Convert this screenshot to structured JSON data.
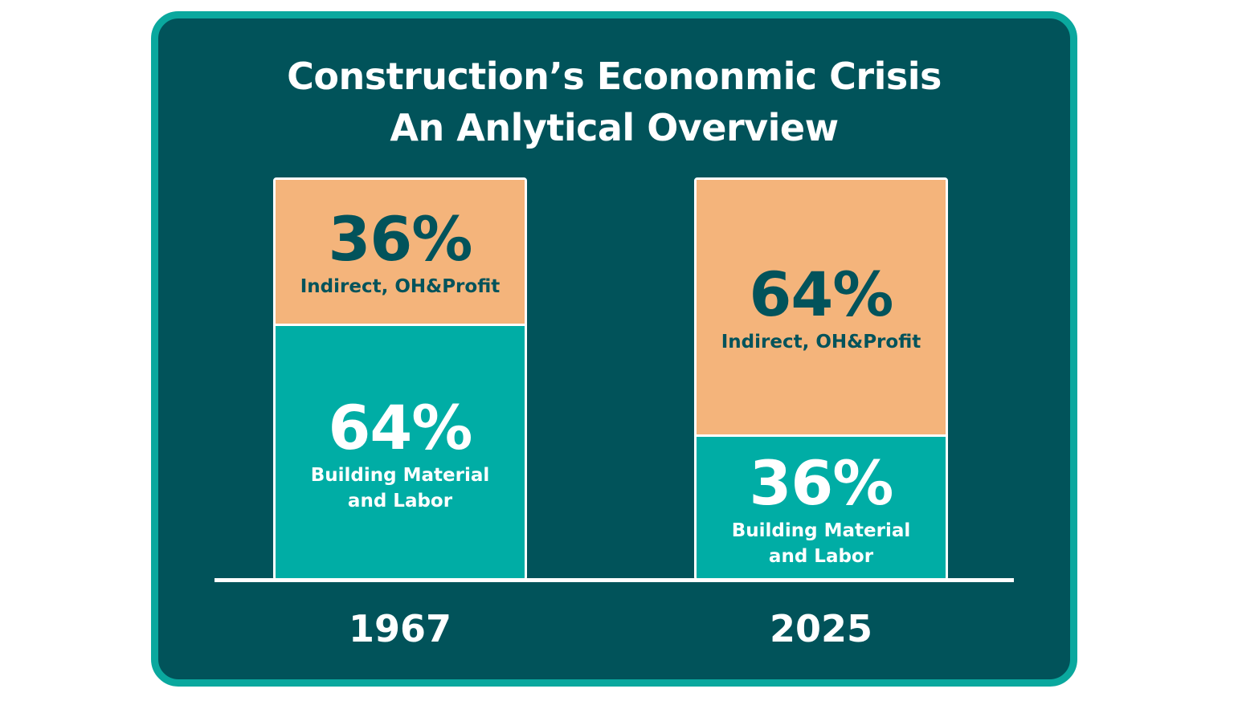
{
  "title_line1": "Construction’s Econonmic Crisis",
  "title_line2": "An Anlytical Overview",
  "colors": {
    "background": "#01535a",
    "frame": "#0aa89e",
    "indirect": "#f4b47b",
    "building": "#00ada5",
    "text_dark": "#02535b",
    "text_light": "#ffffff"
  },
  "chart_data": {
    "type": "bar",
    "stacked": true,
    "categories": [
      "1967",
      "2025"
    ],
    "series": [
      {
        "name": "Building Material and Labor",
        "values": [
          64,
          36
        ],
        "labels": [
          "64%",
          "36%"
        ],
        "label_line1": "Building Material",
        "label_line2": "and Labor",
        "color": "#00ada5"
      },
      {
        "name": "Indirect, OH&Profit",
        "values": [
          36,
          64
        ],
        "labels": [
          "36%",
          "64%"
        ],
        "color": "#f4b47b"
      }
    ],
    "unit": "%",
    "ylim": [
      0,
      100
    ],
    "grid": false,
    "legend": "none"
  }
}
